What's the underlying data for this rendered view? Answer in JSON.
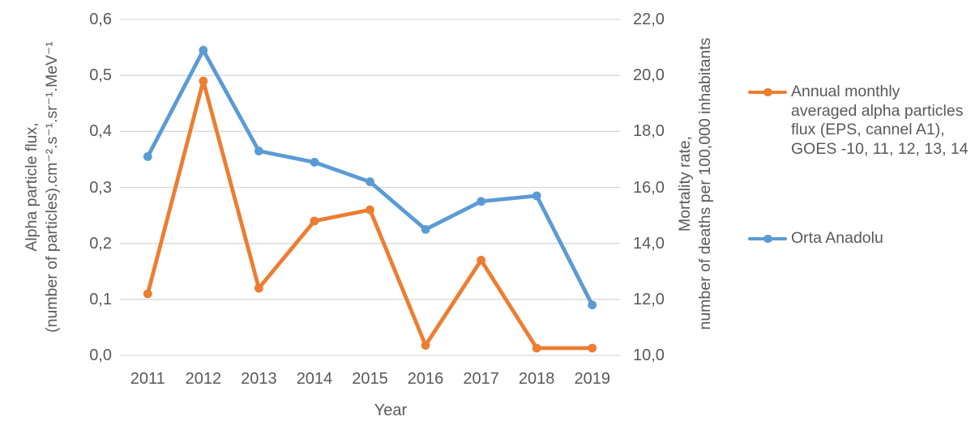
{
  "chart_data": {
    "type": "line",
    "title": "",
    "x": [
      "2011",
      "2012",
      "2013",
      "2014",
      "2015",
      "2016",
      "2017",
      "2018",
      "2019"
    ],
    "xlabel": "Year",
    "grid": true,
    "legend_position": "right",
    "series": [
      {
        "name": "Annual monthly averaged alpha particles flux (EPS, cannel A1), GOES -10, 11, 12, 13, 14",
        "axis": "left",
        "color": "#ED7D31",
        "marker": "circle",
        "values": [
          0.11,
          0.49,
          0.12,
          0.24,
          0.26,
          0.018,
          0.17,
          0.013,
          0.013
        ]
      },
      {
        "name": "Orta Anadolu",
        "axis": "right",
        "color": "#5B9BD5",
        "marker": "circle",
        "values": [
          17.1,
          20.9,
          17.3,
          16.9,
          16.2,
          14.5,
          15.5,
          15.7,
          11.8
        ]
      }
    ],
    "yaxis_left": {
      "title": "Alpha particle flux, (number of particles).cm⁻².s⁻¹.sr⁻¹.MeV⁻¹",
      "title_lines": [
        "Alpha particle flux,",
        "(number of particles).cm⁻².s⁻¹.sr⁻¹.MeV⁻¹"
      ],
      "min": 0.0,
      "max": 0.6,
      "tick_labels": [
        "0,0",
        "0,1",
        "0,2",
        "0,3",
        "0,4",
        "0,5",
        "0,6"
      ]
    },
    "yaxis_right": {
      "title": "Mortality rate, number of deaths per 100,000 inhabitants",
      "title_lines": [
        "Mortality rate,",
        "number of deaths per 100,000 inhabitants"
      ],
      "min": 10.0,
      "max": 22.0,
      "tick_labels": [
        "10,0",
        "12,0",
        "14,0",
        "16,0",
        "18,0",
        "20,0",
        "22,0"
      ]
    },
    "legend": {
      "entries": [
        {
          "label": "Annual monthly averaged alpha particles flux (EPS, cannel A1), GOES -10, 11, 12, 13, 14",
          "label_lines": [
            "Annual monthly",
            "averaged alpha particles",
            "flux (EPS, cannel A1),",
            "GOES -10, 11, 12, 13, 14"
          ],
          "color": "#ED7D31"
        },
        {
          "label": "Orta Anadolu",
          "label_lines": [
            "Orta Anadolu"
          ],
          "color": "#5B9BD5"
        }
      ]
    },
    "colors": {
      "gridline": "#D9D9D9",
      "text": "#595959",
      "background": "#FFFFFF"
    }
  }
}
